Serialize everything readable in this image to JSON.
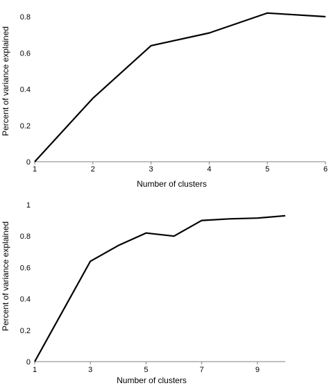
{
  "chart_data": [
    {
      "type": "line",
      "x": [
        1,
        2,
        3,
        4,
        5,
        6
      ],
      "series": [
        {
          "values": [
            0,
            0.35,
            0.64,
            0.71,
            0.82,
            0.8
          ]
        }
      ],
      "xticks": [
        "1",
        "2",
        "3",
        "4",
        "5",
        "6"
      ],
      "yticks": [
        "0",
        "0.2",
        "0.4",
        "0.6",
        "0.8"
      ],
      "xlabel": "Number of clusters",
      "ylabel": "Percent of variance explained",
      "xlim": [
        1,
        6
      ],
      "ylim": [
        0,
        0.8
      ],
      "grid": false,
      "colors": {
        "line": "#000000",
        "axis": "#808080"
      }
    },
    {
      "type": "line",
      "x": [
        1,
        2,
        3,
        4,
        5,
        6,
        7,
        8,
        9,
        10
      ],
      "series": [
        {
          "values": [
            0,
            0.32,
            0.64,
            0.74,
            0.82,
            0.8,
            0.9,
            0.91,
            0.915,
            0.93
          ]
        }
      ],
      "xticks": [
        "1",
        "3",
        "5",
        "7",
        "9"
      ],
      "yticks": [
        "0",
        "0.2",
        "0.4",
        "0.6",
        "0.8",
        "1"
      ],
      "xlabel": "Number of clusters",
      "ylabel": "Percent of variance explained",
      "xlim": [
        1,
        10
      ],
      "ylim": [
        0,
        1
      ],
      "grid": false,
      "colors": {
        "line": "#000000",
        "axis": "#808080"
      }
    }
  ]
}
